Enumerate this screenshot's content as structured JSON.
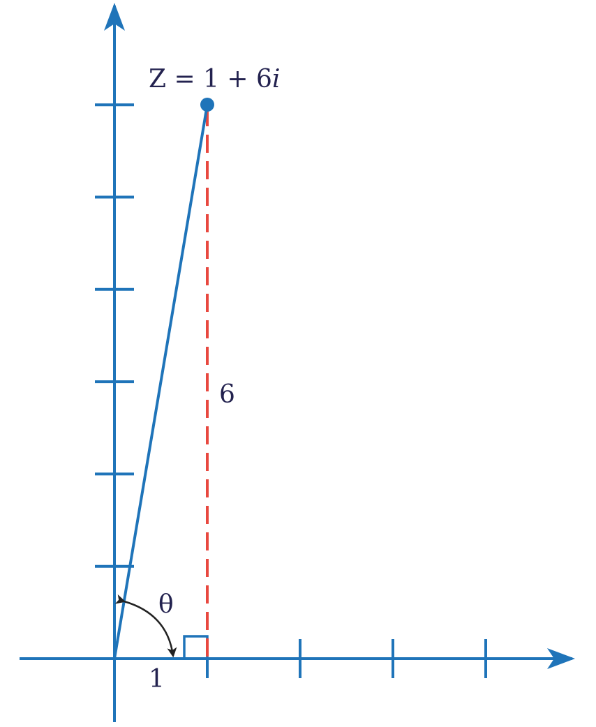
{
  "colors": {
    "axis": "#1f74b9",
    "dash": "#e8483f",
    "text": "#23224f",
    "arc": "#222222"
  },
  "point": {
    "real": 1,
    "imag": 6,
    "label_prefix": "Z = 1 + 6",
    "label_italic": "i"
  },
  "labels": {
    "vertical_side": "6",
    "horizontal_side": "1",
    "angle": "θ"
  },
  "axes": {
    "x_ticks": [
      1,
      2,
      3,
      4
    ],
    "y_ticks": [
      1,
      2,
      3,
      4,
      5,
      6
    ]
  }
}
